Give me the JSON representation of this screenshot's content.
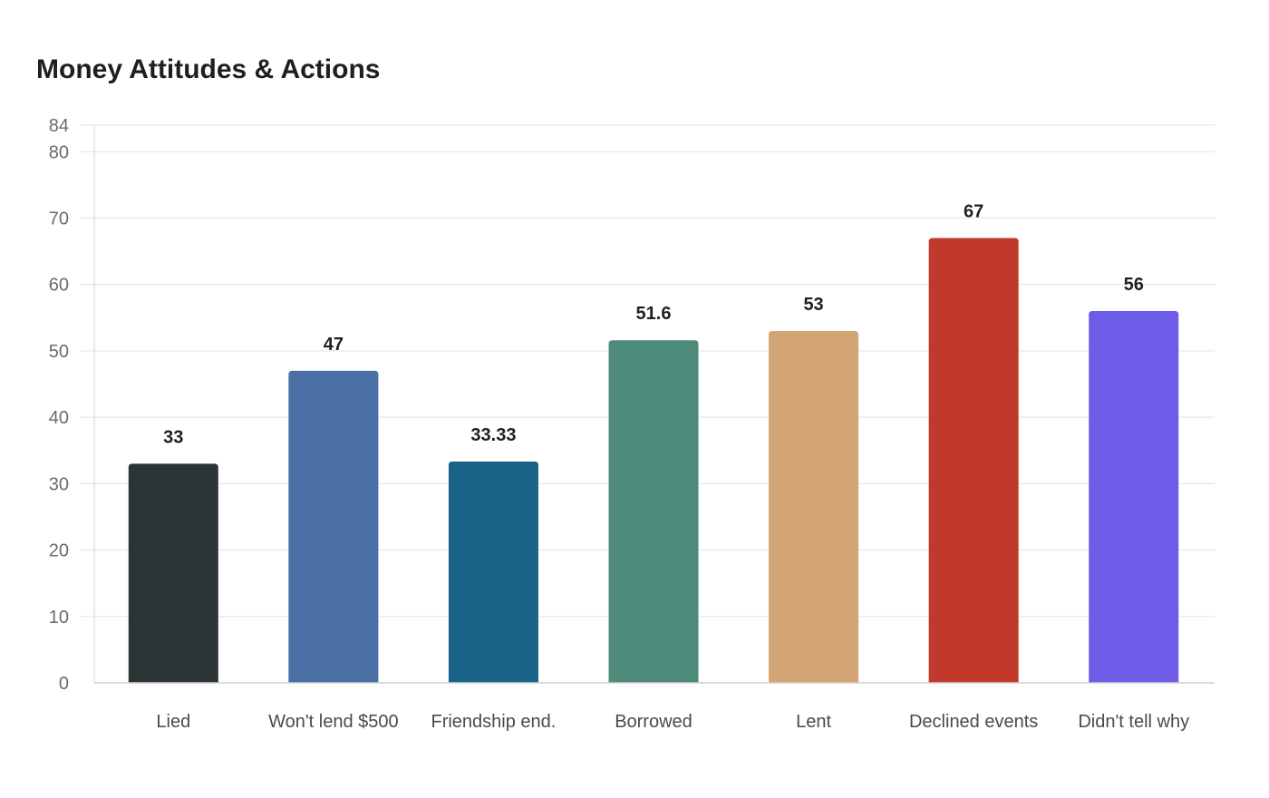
{
  "chart_data": {
    "type": "bar",
    "title": "Money Attitudes & Actions",
    "xlabel": "",
    "ylabel": "",
    "categories": [
      "Lied",
      "Won't lend $500",
      "Friendship end.",
      "Borrowed",
      "Lent",
      "Declined events",
      "Didn't tell why"
    ],
    "values": [
      33,
      47,
      33.33,
      51.6,
      53,
      67,
      56
    ],
    "value_labels": [
      "33",
      "47",
      "33.33",
      "51.6",
      "53",
      "67",
      "56"
    ],
    "colors": [
      "#2d3436",
      "#4a6fa5",
      "#186288",
      "#4f8b7a",
      "#d3a574",
      "#c0392b",
      "#6c5ce7"
    ],
    "ylim": [
      0,
      84
    ],
    "yticks": [
      0,
      10,
      20,
      30,
      40,
      50,
      60,
      70,
      80,
      84
    ],
    "grid": true,
    "legend": "none"
  }
}
